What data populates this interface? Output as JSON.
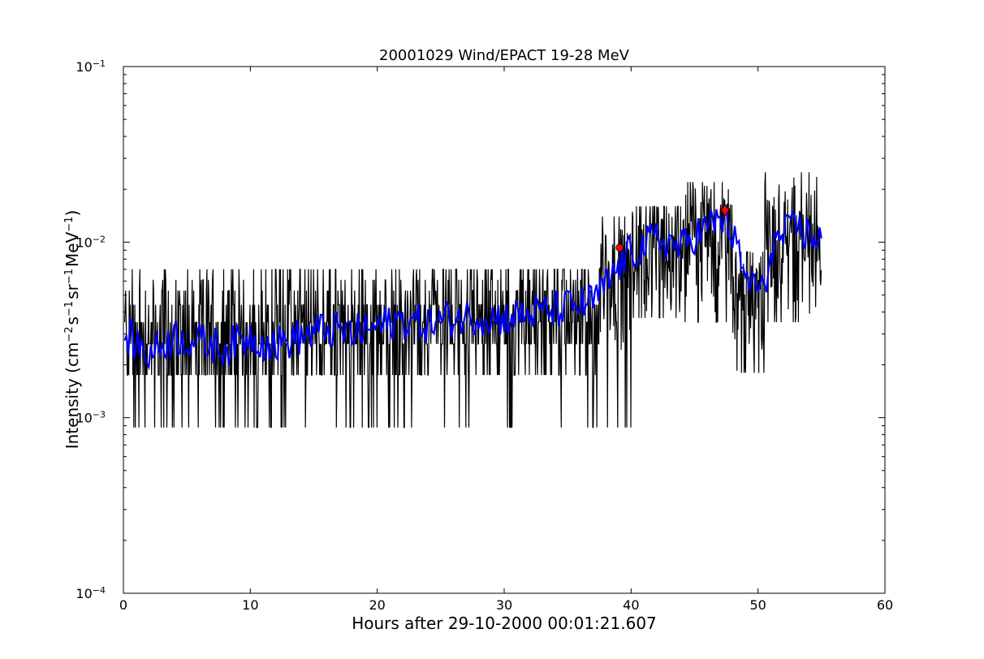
{
  "chart_data": {
    "type": "line",
    "title": "20001029 Wind/EPACT 19-28 MeV",
    "xlabel": "Hours after 29-10-2000 00:01:21.607",
    "ylabel": {
      "prefix": "Intensity (cm",
      "sup1": "−2",
      "mid1": "s",
      "sup2": "−1",
      "mid2": "sr",
      "sup3": "−1",
      "mid3": "MeV",
      "sup4": "−1",
      "suffix": ")"
    },
    "xlim": [
      0,
      60
    ],
    "ylim": [
      0.0001,
      0.1
    ],
    "yscale": "log",
    "grid": false,
    "x_ticks": [
      {
        "value": 0,
        "label": "0"
      },
      {
        "value": 10,
        "label": "10"
      },
      {
        "value": 20,
        "label": "20"
      },
      {
        "value": 30,
        "label": "30"
      },
      {
        "value": 40,
        "label": "40"
      },
      {
        "value": 50,
        "label": "50"
      },
      {
        "value": 60,
        "label": "60"
      }
    ],
    "y_ticks": [
      {
        "value": 0.0001,
        "base": "10",
        "exp": "−4"
      },
      {
        "value": 0.001,
        "base": "10",
        "exp": "−3"
      },
      {
        "value": 0.01,
        "base": "10",
        "exp": "−2"
      },
      {
        "value": 0.1,
        "base": "10",
        "exp": "−1"
      }
    ],
    "series": [
      {
        "role": "raw",
        "color": "#000000",
        "x_range": [
          0.1,
          55.0
        ],
        "levels": [
          0.00088,
          0.00175,
          0.00263,
          0.0035,
          0.0044,
          0.0053,
          0.0061,
          0.007
        ],
        "segments": [
          {
            "from": 0.1,
            "to": 12.2,
            "center": 0.0029,
            "min": 0.00088,
            "max": 0.0079
          },
          {
            "from": 12.2,
            "to": 24,
            "center": 0.0031,
            "min": 0.00088,
            "max": 0.0079
          },
          {
            "from": 24,
            "to": 30,
            "center": 0.0034,
            "min": 0.00088,
            "max": 0.0088
          },
          {
            "from": 30,
            "to": 37.5,
            "center": 0.0038,
            "min": 0.00088,
            "max": 0.0079
          },
          {
            "from": 37.5,
            "to": 40,
            "center": 0.0068,
            "min": 0.00088,
            "max": 0.014
          },
          {
            "from": 40,
            "to": 44,
            "center": 0.0092,
            "min": 0.0037,
            "max": 0.016
          },
          {
            "from": 44,
            "to": 48,
            "center": 0.0115,
            "min": 0.0035,
            "max": 0.022
          },
          {
            "from": 48,
            "to": 50.5,
            "center": 0.0052,
            "min": 0.0018,
            "max": 0.0088
          },
          {
            "from": 50.5,
            "to": 55,
            "center": 0.0105,
            "min": 0.0035,
            "max": 0.025
          }
        ]
      },
      {
        "role": "smoothed",
        "color": "#0000ff",
        "x": [
          0.1,
          2,
          4,
          6,
          8,
          10,
          12,
          14,
          16,
          18,
          20,
          22,
          24,
          26,
          28,
          30,
          32,
          34,
          36,
          37,
          38,
          39,
          40,
          41,
          42,
          43,
          44,
          45,
          46,
          47,
          47.5,
          48,
          48.5,
          49,
          50,
          50.5,
          51,
          52,
          53,
          54,
          55
        ],
        "y": [
          0.003,
          0.0023,
          0.0029,
          0.0027,
          0.0025,
          0.0029,
          0.0026,
          0.0029,
          0.0032,
          0.003,
          0.0033,
          0.0036,
          0.0034,
          0.0037,
          0.0038,
          0.0037,
          0.0039,
          0.0041,
          0.0044,
          0.0046,
          0.0056,
          0.0072,
          0.0088,
          0.0095,
          0.0105,
          0.0099,
          0.0092,
          0.011,
          0.012,
          0.0138,
          0.013,
          0.011,
          0.0082,
          0.0062,
          0.0056,
          0.0048,
          0.0095,
          0.0108,
          0.0122,
          0.011,
          0.0105
        ]
      }
    ],
    "markers": [
      {
        "x": 39.1,
        "y": 0.0093,
        "color": "#ff0000",
        "shape": "circle"
      },
      {
        "x": 47.4,
        "y": 0.0152,
        "color": "#ff0000",
        "shape": "diamond"
      }
    ]
  }
}
